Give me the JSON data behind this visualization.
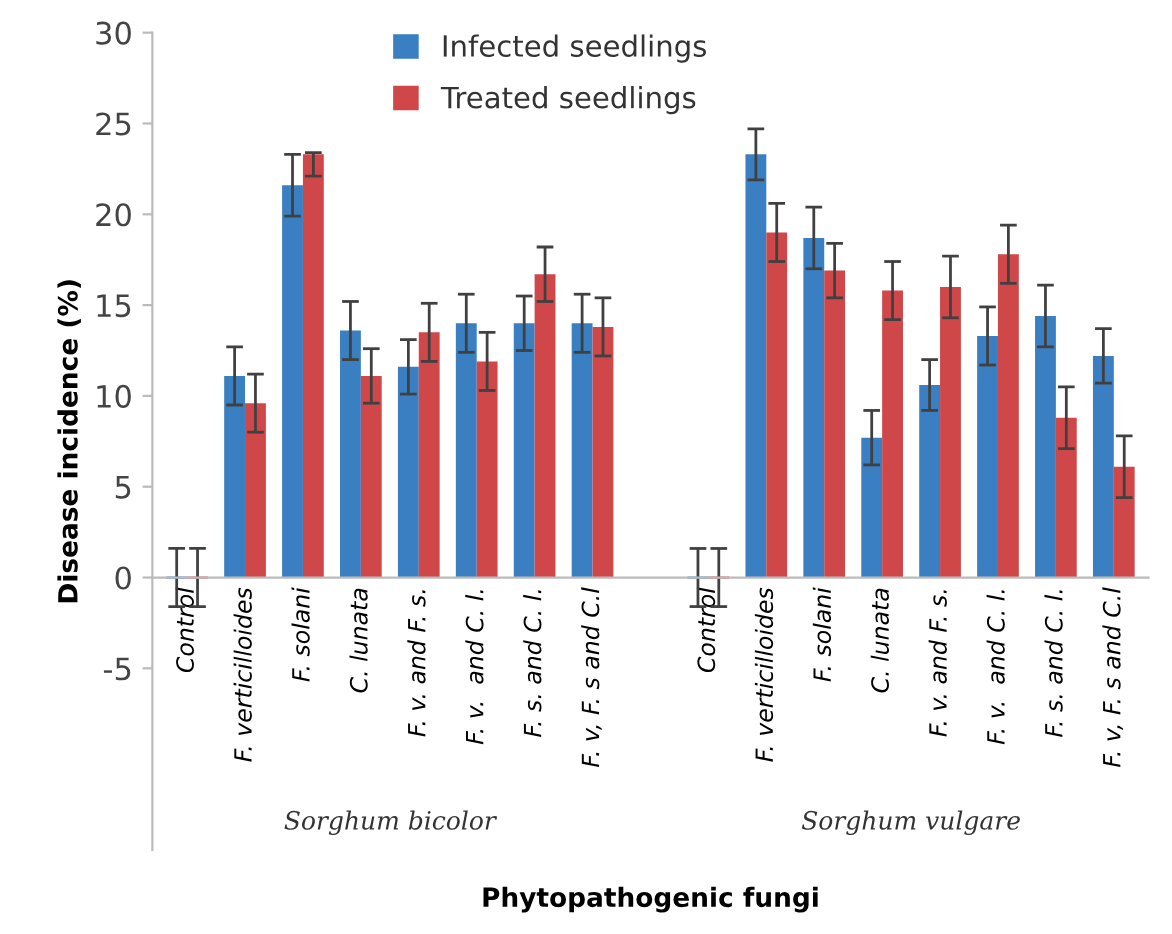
{
  "chart_data": {
    "type": "bar",
    "ylabel": "Disease incidence (%)",
    "xlabel": "Phytopathogenic fungi",
    "categories": [
      "Control",
      "F. verticilloides",
      "F. solani",
      "C. lunata",
      "F. v. and F. s.",
      "F. v.  and C. l.",
      "F. s. and C. l.",
      "F. v, F. s and C.l",
      null,
      "Control",
      "F. verticilloides",
      "F. solani",
      "C. lunata",
      "F. v. and F. s.",
      "F. v.  and C. l.",
      "F. s. and C. l.",
      "F. v, F. s and C.l"
    ],
    "series": [
      {
        "name": "Infected seedlings",
        "color": "#3a7fc2",
        "values": [
          0,
          11.1,
          21.6,
          13.6,
          11.6,
          14.0,
          14.0,
          14.0,
          null,
          0,
          23.3,
          18.7,
          7.7,
          10.6,
          13.3,
          14.4,
          12.2
        ],
        "errors": [
          1.6,
          1.6,
          1.7,
          1.6,
          1.5,
          1.6,
          1.5,
          1.6,
          null,
          1.6,
          1.4,
          1.7,
          1.5,
          1.4,
          1.6,
          1.7,
          1.5
        ]
      },
      {
        "name": "Treated seedlings",
        "color": "#d0474a",
        "values": [
          0,
          9.6,
          23.3,
          11.1,
          13.5,
          11.9,
          16.7,
          13.8,
          null,
          0,
          19.0,
          16.9,
          15.8,
          16.0,
          17.8,
          8.8,
          6.1
        ],
        "errors": [
          1.6,
          1.6,
          [
            22.1,
            23.4
          ],
          1.5,
          1.6,
          1.6,
          1.5,
          1.6,
          null,
          1.6,
          1.6,
          1.5,
          1.6,
          1.7,
          1.6,
          1.7,
          1.7
        ]
      }
    ],
    "ylim": [
      -15,
      30
    ],
    "yticks": [
      -5,
      0,
      5,
      10,
      15,
      20,
      25,
      30
    ],
    "annotations": [
      "Sorghum bicolor",
      "Sorghum vulgare"
    ],
    "legend": "top",
    "grid": false
  }
}
